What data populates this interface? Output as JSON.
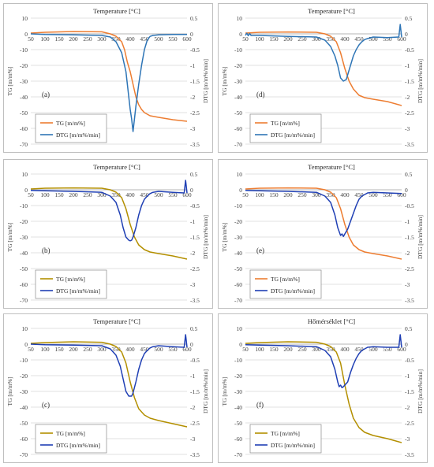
{
  "chart_data": [
    {
      "type": "line",
      "panel_label": "(a)",
      "title": "Temperature [°C]",
      "ylabel": "TG  [m/m%]",
      "y2label": "DTG  [m/m%/min]",
      "xlim": [
        50,
        600
      ],
      "ylim": [
        -70,
        10
      ],
      "y2lim": [
        -3.5,
        0.5
      ],
      "x_ticks": [
        50,
        100,
        150,
        200,
        250,
        300,
        350,
        400,
        450,
        500,
        550,
        600
      ],
      "y_ticks": [
        10,
        0,
        -10,
        -20,
        -30,
        -40,
        -50,
        -60,
        -70
      ],
      "y2_ticks": [
        0.5,
        0,
        -0.5,
        -1,
        -1.5,
        -2,
        -2.5,
        -3,
        -3.5
      ],
      "y2_ticklabels": [
        "0.5",
        "0",
        "-0.5",
        "-1",
        "-1.5",
        "-2",
        "-2.5",
        "-3",
        "-3.5"
      ],
      "legend": "bottom-left",
      "series": [
        {
          "name": "TG  [m/m%]",
          "axis": "left",
          "color": "#ED7D31",
          "x": [
            50,
            100,
            200,
            300,
            330,
            350,
            370,
            380,
            390,
            400,
            410,
            420,
            430,
            440,
            450,
            470,
            500,
            550,
            600
          ],
          "y": [
            0.5,
            1,
            1.5,
            1.3,
            0,
            -1.5,
            -5,
            -10,
            -18,
            -24,
            -32,
            -40,
            -45,
            -48,
            -50,
            -52,
            -53,
            -54.5,
            -55.5
          ]
        },
        {
          "name": "DTG [m/m%/min]",
          "axis": "right",
          "color": "#2E75B6",
          "x": [
            50,
            100,
            200,
            300,
            330,
            350,
            370,
            385,
            395,
            400,
            405,
            410,
            415,
            420,
            430,
            440,
            450,
            460,
            470,
            480,
            500,
            550,
            600
          ],
          "y": [
            0,
            -0.02,
            -0.03,
            -0.05,
            -0.1,
            -0.25,
            -0.6,
            -1.2,
            -2.0,
            -2.4,
            -2.7,
            -3.1,
            -2.7,
            -2.3,
            -1.6,
            -1.0,
            -0.5,
            -0.2,
            -0.08,
            -0.05,
            -0.03,
            -0.02,
            -0.02
          ]
        }
      ]
    },
    {
      "type": "line",
      "panel_label": "(d)",
      "title": "Temperature [°C]",
      "ylabel": "TG  [m/m%]",
      "y2label": "DTG  [m/m%/min]",
      "xlim": [
        50,
        600
      ],
      "ylim": [
        -70,
        10
      ],
      "y2lim": [
        -3.5,
        0.5
      ],
      "x_ticks": [
        50,
        100,
        150,
        200,
        250,
        300,
        350,
        400,
        450,
        500,
        550,
        600
      ],
      "y_ticks": [
        10,
        0,
        -10,
        -20,
        -30,
        -40,
        -50,
        -60,
        -70
      ],
      "y2_ticks": [
        0.5,
        0,
        -0.5,
        -1,
        -1.5,
        -2,
        -2.5,
        -3,
        -3.5
      ],
      "y2_ticklabels": [
        "0.5",
        "0",
        "-0.5",
        "-1",
        "-1.5",
        "-2",
        "-2.5",
        "-3",
        "-3.5"
      ],
      "legend": "bottom-left",
      "series": [
        {
          "name": "TG  [m/m%]",
          "axis": "left",
          "color": "#ED7D31",
          "x": [
            50,
            100,
            200,
            300,
            330,
            350,
            370,
            385,
            400,
            415,
            430,
            450,
            470,
            500,
            550,
            600
          ],
          "y": [
            0.5,
            1,
            1.2,
            1,
            0,
            -1.5,
            -5,
            -12,
            -22,
            -30,
            -35,
            -39,
            -40.5,
            -41.5,
            -43,
            -45.5
          ]
        },
        {
          "name": "DTG [m/m%/min]",
          "axis": "right",
          "color": "#2E75B6",
          "x": [
            50,
            55,
            60,
            65,
            70,
            100,
            200,
            300,
            330,
            350,
            365,
            375,
            385,
            390,
            395,
            405,
            410,
            420,
            430,
            440,
            450,
            460,
            470,
            480,
            500,
            550,
            590,
            595,
            600
          ],
          "y": [
            -0.05,
            0.02,
            -0.06,
            0.01,
            -0.05,
            -0.05,
            -0.08,
            -0.1,
            -0.2,
            -0.4,
            -0.7,
            -1.0,
            -1.4,
            -1.45,
            -1.5,
            -1.45,
            -1.3,
            -1.0,
            -0.7,
            -0.5,
            -0.35,
            -0.25,
            -0.18,
            -0.15,
            -0.1,
            -0.12,
            -0.1,
            0.3,
            -0.1
          ]
        }
      ]
    },
    {
      "type": "line",
      "panel_label": "(b)",
      "title": "Temperature [°C]",
      "ylabel": "TG  [m/m%]",
      "y2label": "DTG  [m/m%/min]",
      "xlim": [
        50,
        600
      ],
      "ylim": [
        -70,
        10
      ],
      "y2lim": [
        -3.5,
        0.5
      ],
      "x_ticks": [
        50,
        100,
        150,
        200,
        250,
        300,
        350,
        400,
        450,
        500,
        550,
        600
      ],
      "y_ticks": [
        10,
        0,
        -10,
        -20,
        -30,
        -40,
        -50,
        -60,
        -70
      ],
      "y2_ticks": [
        0.5,
        0,
        -0.5,
        -1,
        -1.5,
        -2,
        -2.5,
        -3,
        -3.5
      ],
      "y2_ticklabels": [
        "0.5",
        "0",
        "-0.5",
        "-1",
        "-1.5",
        "-2",
        "-2.5",
        "-3",
        "-3.5"
      ],
      "legend": "bottom-left",
      "series": [
        {
          "name": "TG  [m/m%]",
          "axis": "left",
          "color": "#B38F00",
          "x": [
            50,
            100,
            200,
            300,
            330,
            350,
            370,
            385,
            400,
            415,
            430,
            450,
            470,
            500,
            550,
            600
          ],
          "y": [
            0.5,
            1,
            1.2,
            1,
            0,
            -1.5,
            -5,
            -12,
            -22,
            -30,
            -35,
            -38,
            -39.5,
            -40.5,
            -42,
            -44
          ]
        },
        {
          "name": "DTG [m/m%/min]",
          "axis": "right",
          "color": "#1F3FB4",
          "x": [
            50,
            100,
            200,
            300,
            330,
            350,
            365,
            375,
            385,
            395,
            400,
            405,
            410,
            420,
            430,
            440,
            450,
            460,
            470,
            480,
            500,
            550,
            590,
            595,
            600
          ],
          "y": [
            -0.02,
            -0.03,
            -0.05,
            -0.08,
            -0.2,
            -0.4,
            -0.8,
            -1.2,
            -1.5,
            -1.6,
            -1.62,
            -1.6,
            -1.5,
            -1.2,
            -0.8,
            -0.5,
            -0.3,
            -0.2,
            -0.12,
            -0.08,
            -0.05,
            -0.08,
            -0.1,
            0.3,
            -0.1
          ]
        }
      ]
    },
    {
      "type": "line",
      "panel_label": "(e)",
      "title": "Temperature [°C]",
      "ylabel": "TG  [m/m%]",
      "y2label": "DTG  [m/m%/min]",
      "xlim": [
        50,
        600
      ],
      "ylim": [
        -70,
        10
      ],
      "y2lim": [
        -3.5,
        0.5
      ],
      "x_ticks": [
        50,
        100,
        150,
        200,
        250,
        300,
        350,
        400,
        450,
        500,
        550,
        600
      ],
      "y_ticks": [
        10,
        0,
        -10,
        -20,
        -30,
        -40,
        -50,
        -60,
        -70
      ],
      "y2_ticks": [
        0.5,
        0,
        -0.5,
        -1,
        -1.5,
        -2,
        -2.5,
        -3,
        -3.5
      ],
      "y2_ticklabels": [
        "0.5",
        "0",
        "-0.5",
        "-1",
        "-1.5",
        "-2",
        "-2.5",
        "-3",
        "-3.5"
      ],
      "legend": "bottom-left",
      "series": [
        {
          "name": "TG  [m/m%]",
          "axis": "left",
          "color": "#ED7D31",
          "x": [
            50,
            100,
            200,
            300,
            330,
            350,
            370,
            385,
            400,
            415,
            430,
            450,
            470,
            500,
            550,
            600
          ],
          "y": [
            0.5,
            1,
            1.2,
            1,
            0,
            -1.5,
            -5,
            -12,
            -22,
            -30,
            -35,
            -38,
            -39.5,
            -40.5,
            -42,
            -44
          ]
        },
        {
          "name": "DTG [m/m%/min]",
          "axis": "right",
          "color": "#1F3FB4",
          "x": [
            50,
            100,
            200,
            300,
            330,
            350,
            365,
            375,
            385,
            390,
            395,
            400,
            410,
            420,
            430,
            440,
            450,
            460,
            470,
            480,
            500,
            550,
            600
          ],
          "y": [
            -0.02,
            -0.03,
            -0.05,
            -0.08,
            -0.2,
            -0.4,
            -0.8,
            -1.2,
            -1.45,
            -1.4,
            -1.48,
            -1.4,
            -1.25,
            -1.0,
            -0.75,
            -0.5,
            -0.3,
            -0.2,
            -0.15,
            -0.1,
            -0.08,
            -0.1,
            -0.12
          ]
        }
      ]
    },
    {
      "type": "line",
      "panel_label": "(c)",
      "title": "Temperature [°C]",
      "ylabel": "TG  [m/m%]",
      "y2label": "DTG  [m/m%/min]",
      "xlim": [
        50,
        600
      ],
      "ylim": [
        -70,
        10
      ],
      "y2lim": [
        -3.5,
        0.5
      ],
      "x_ticks": [
        50,
        100,
        150,
        200,
        250,
        300,
        350,
        400,
        450,
        500,
        550,
        600
      ],
      "y_ticks": [
        10,
        0,
        -10,
        -20,
        -30,
        -40,
        -50,
        -60,
        -70
      ],
      "y2_ticks": [
        0.5,
        0,
        -0.5,
        -1,
        -1.5,
        -2,
        -2.5,
        -3,
        -3.5
      ],
      "y2_ticklabels": [
        "0.5",
        "0",
        "-0.5",
        "-1",
        "-1.5",
        "-2",
        "-2.5",
        "-3",
        "-3.5"
      ],
      "legend": "bottom-left",
      "series": [
        {
          "name": "TG  [m/m%]",
          "axis": "left",
          "color": "#B38F00",
          "x": [
            50,
            100,
            200,
            300,
            330,
            350,
            370,
            385,
            400,
            415,
            430,
            450,
            470,
            500,
            550,
            600
          ],
          "y": [
            0.5,
            1,
            1.5,
            1.2,
            0,
            -1.5,
            -5,
            -12,
            -24,
            -34,
            -41,
            -45,
            -47,
            -48.5,
            -50.5,
            -52.5
          ]
        },
        {
          "name": "DTG [m/m%/min]",
          "axis": "right",
          "color": "#1F3FB4",
          "x": [
            50,
            100,
            200,
            300,
            330,
            350,
            365,
            375,
            385,
            395,
            400,
            405,
            410,
            420,
            430,
            440,
            450,
            460,
            470,
            480,
            500,
            550,
            590,
            595,
            600
          ],
          "y": [
            0,
            -0.02,
            -0.03,
            -0.05,
            -0.15,
            -0.35,
            -0.7,
            -1.1,
            -1.5,
            -1.65,
            -1.65,
            -1.65,
            -1.55,
            -1.2,
            -0.8,
            -0.5,
            -0.3,
            -0.2,
            -0.12,
            -0.08,
            -0.05,
            -0.08,
            -0.1,
            0.3,
            -0.1
          ]
        }
      ]
    },
    {
      "type": "line",
      "panel_label": "(f)",
      "title": "Hőmérséklet [°C]",
      "ylabel": "TG  [m/m%]",
      "y2label": "DTG  [m/m%/min]",
      "xlim": [
        50,
        600
      ],
      "ylim": [
        -70,
        10
      ],
      "y2lim": [
        -3.5,
        0.5
      ],
      "x_ticks": [
        50,
        100,
        150,
        200,
        250,
        300,
        350,
        400,
        450,
        500,
        550,
        600
      ],
      "y_ticks": [
        10,
        0,
        -10,
        -20,
        -30,
        -40,
        -50,
        -60,
        -70
      ],
      "y2_ticks": [
        0.5,
        0,
        -0.5,
        -1,
        -1.5,
        -2,
        -2.5,
        -3,
        -3.5
      ],
      "y2_ticklabels": [
        "0.5",
        "0",
        "-0.5",
        "-1",
        "-1.5",
        "-2",
        "-2.5",
        "-3",
        "-3.5"
      ],
      "legend": "bottom-left",
      "series": [
        {
          "name": "TG  [m/m%]",
          "axis": "left",
          "color": "#B38F00",
          "x": [
            50,
            100,
            200,
            300,
            330,
            350,
            370,
            385,
            400,
            415,
            430,
            450,
            470,
            500,
            550,
            600
          ],
          "y": [
            0.5,
            1,
            1.5,
            1.2,
            0,
            -1.5,
            -5,
            -12,
            -26,
            -38,
            -47,
            -53,
            -56,
            -58,
            -60,
            -62.5
          ]
        },
        {
          "name": "DTG [m/m%/min]",
          "axis": "right",
          "color": "#1F3FB4",
          "x": [
            50,
            100,
            200,
            300,
            330,
            350,
            365,
            375,
            380,
            385,
            390,
            395,
            400,
            410,
            420,
            430,
            440,
            450,
            460,
            470,
            480,
            500,
            550,
            590,
            595,
            600
          ],
          "y": [
            -0.02,
            -0.03,
            -0.05,
            -0.08,
            -0.2,
            -0.4,
            -0.8,
            -1.2,
            -1.35,
            -1.3,
            -1.38,
            -1.35,
            -1.3,
            -1.2,
            -0.9,
            -0.65,
            -0.45,
            -0.3,
            -0.2,
            -0.15,
            -0.1,
            -0.08,
            -0.1,
            -0.1,
            0.3,
            -0.1
          ]
        }
      ]
    }
  ]
}
